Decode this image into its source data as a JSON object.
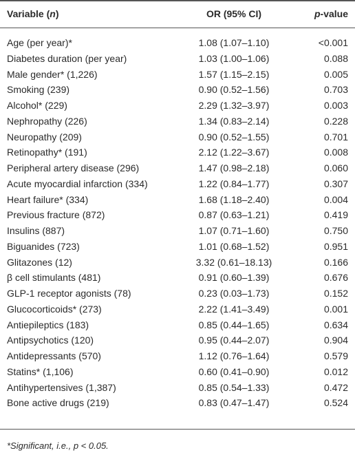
{
  "header": [
    {
      "before": "Variable (",
      "italic": "n",
      "after": ")"
    },
    {
      "before": "OR (95% CI)"
    },
    {
      "italic": "p",
      "after": "-value"
    }
  ],
  "table": {
    "rows": [
      [
        "Age (per year)*",
        "1.08 (1.07–1.10)",
        "<0.001"
      ],
      [
        "Diabetes duration (per year)",
        "1.03 (1.00–1.06)",
        "0.088"
      ],
      [
        "Male gender* (1,226)",
        "1.57 (1.15–2.15)",
        "0.005"
      ],
      [
        "Smoking (239)",
        "0.90 (0.52–1.56)",
        "0.703"
      ],
      [
        "Alcohol* (229)",
        "2.29 (1.32–3.97)",
        "0.003"
      ],
      [
        "Nephropathy (226)",
        "1.34 (0.83–2.14)",
        "0.228"
      ],
      [
        "Neuropathy (209)",
        "0.90 (0.52–1.55)",
        "0.701"
      ],
      [
        "Retinopathy* (191)",
        "2.12 (1.22–3.67)",
        "0.008"
      ],
      [
        "Peripheral artery disease (296)",
        "1.47 (0.98–2.18)",
        "0.060"
      ],
      [
        "Acute myocardial infarction (334)",
        "1.22 (0.84–1.77)",
        "0.307"
      ],
      [
        "Heart failure* (334)",
        "1.68 (1.18–2.40)",
        "0.004"
      ],
      [
        "Previous fracture (872)",
        "0.87 (0.63–1.21)",
        "0.419"
      ],
      [
        "Insulins (887)",
        "1.07 (0.71–1.60)",
        "0.750"
      ],
      [
        "Biguanides (723)",
        "1.01 (0.68–1.52)",
        "0.951"
      ],
      [
        "Glitazones (12)",
        "3.32 (0.61–18.13)",
        "0.166"
      ],
      [
        "β cell stimulants (481)",
        "0.91 (0.60–1.39)",
        "0.676"
      ],
      [
        "GLP-1 receptor agonists (78)",
        "0.23 (0.03–1.73)",
        "0.152"
      ],
      [
        "Glucocorticoids* (273)",
        "2.22 (1.41–3.49)",
        "0.001"
      ],
      [
        "Antiepileptics (183)",
        "0.85 (0.44–1.65)",
        "0.634"
      ],
      [
        "Antipsychotics (120)",
        "0.95 (0.44–2.07)",
        "0.904"
      ],
      [
        "Antidepressants (570)",
        "1.12 (0.76–1.64)",
        "0.579"
      ],
      [
        "Statins* (1,106)",
        "0.60 (0.41–0.90)",
        "0.012"
      ],
      [
        "Antihypertensives (1,387)",
        "0.85 (0.54–1.33)",
        "0.472"
      ],
      [
        "Bone active drugs (219)",
        "0.83 (0.47–1.47)",
        "0.524"
      ]
    ]
  },
  "footnote": "*Significant, i.e., p < 0.05."
}
